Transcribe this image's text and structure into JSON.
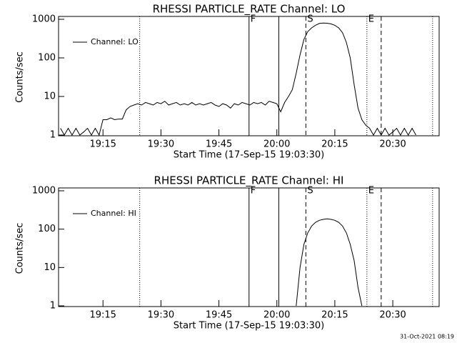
{
  "chart_data": [
    {
      "type": "line",
      "title": "RHESSI PARTICLE_RATE Channel: LO",
      "xlabel": "Start Time (17-Sep-15 19:03:30)",
      "ylabel": "Counts/sec",
      "log_y": true,
      "legend": "upper left",
      "color": "#000000",
      "xlim": [
        1143.5,
        1242
      ],
      "ylim": [
        1,
        1000
      ],
      "xticks": [
        {
          "value": 1155,
          "label": "19:15"
        },
        {
          "value": 1170,
          "label": "19:30"
        },
        {
          "value": 1185,
          "label": "19:45"
        },
        {
          "value": 1200,
          "label": "20:00"
        },
        {
          "value": 1215,
          "label": "20:15"
        },
        {
          "value": 1230,
          "label": "20:30"
        }
      ],
      "yticks": [
        1,
        10,
        100,
        1000
      ],
      "markers": [
        {
          "x": 1164.5,
          "style": "dotted"
        },
        {
          "x": 1192.8,
          "style": "solid",
          "label": "F"
        },
        {
          "x": 1200.5,
          "style": "solid"
        },
        {
          "x": 1207.5,
          "style": "dashed",
          "label": "S"
        },
        {
          "x": 1223.3,
          "style": "dotted",
          "label": "E"
        },
        {
          "x": 1227,
          "style": "dashed"
        },
        {
          "x": 1240.3,
          "style": "dotted"
        }
      ],
      "series": [
        {
          "name": "Channel: LO",
          "x": [
            1144,
            1145,
            1146,
            1147,
            1148,
            1149,
            1150,
            1151,
            1152,
            1153,
            1154,
            1155,
            1156,
            1157,
            1158,
            1159,
            1160,
            1161,
            1162,
            1163,
            1164,
            1165,
            1166,
            1167,
            1168,
            1169,
            1170,
            1171,
            1172,
            1173,
            1174,
            1175,
            1176,
            1177,
            1178,
            1179,
            1180,
            1181,
            1182,
            1183,
            1184,
            1185,
            1186,
            1187,
            1188,
            1189,
            1190,
            1191,
            1192,
            1193,
            1194,
            1195,
            1196,
            1197,
            1198,
            1199,
            1200,
            1201,
            1202,
            1203,
            1204,
            1205,
            1206,
            1207,
            1208,
            1209,
            1210,
            1211,
            1212,
            1213,
            1214,
            1215,
            1216,
            1217,
            1218,
            1219,
            1220,
            1221,
            1222,
            1223,
            1224,
            1225,
            1226,
            1227,
            1228,
            1229,
            1230,
            1231,
            1232,
            1233,
            1234,
            1235,
            1236
          ],
          "values": [
            1.5,
            1,
            1.5,
            1,
            1.5,
            1,
            1.2,
            1.5,
            1,
            1.5,
            1,
            2.5,
            2.5,
            2.8,
            2.5,
            2.6,
            2.6,
            4.5,
            5.5,
            6,
            6.5,
            6,
            7,
            6.5,
            6,
            7,
            6.5,
            7.5,
            6,
            6.5,
            7,
            6,
            6.5,
            6,
            7,
            6,
            6.5,
            6,
            6.5,
            7,
            6,
            5.5,
            6.5,
            6,
            5,
            6.5,
            6,
            7,
            6.5,
            6,
            7,
            6.5,
            7,
            6,
            7.5,
            7,
            6.5,
            4,
            7,
            10,
            15,
            40,
            120,
            300,
            480,
            600,
            700,
            780,
            800,
            790,
            760,
            700,
            600,
            450,
            250,
            100,
            20,
            5,
            2.5,
            1.8,
            1.5,
            1,
            1.5,
            1,
            1.5,
            1,
            1.2,
            1.5,
            1,
            1.5,
            1,
            1.5,
            1
          ]
        }
      ]
    },
    {
      "type": "line",
      "title": "RHESSI PARTICLE_RATE Channel: HI",
      "xlabel": "Start Time (17-Sep-15 19:03:30)",
      "ylabel": "Counts/sec",
      "log_y": true,
      "legend": "upper left",
      "color": "#000000",
      "xlim": [
        1143.5,
        1242
      ],
      "ylim": [
        1,
        1000
      ],
      "xticks": [
        {
          "value": 1155,
          "label": "19:15"
        },
        {
          "value": 1170,
          "label": "19:30"
        },
        {
          "value": 1185,
          "label": "19:45"
        },
        {
          "value": 1200,
          "label": "20:00"
        },
        {
          "value": 1215,
          "label": "20:15"
        },
        {
          "value": 1230,
          "label": "20:30"
        }
      ],
      "yticks": [
        1,
        10,
        100,
        1000
      ],
      "markers": [
        {
          "x": 1164.5,
          "style": "dotted"
        },
        {
          "x": 1192.8,
          "style": "solid",
          "label": "F"
        },
        {
          "x": 1200.5,
          "style": "solid"
        },
        {
          "x": 1207.5,
          "style": "dashed",
          "label": "S"
        },
        {
          "x": 1223.3,
          "style": "dotted",
          "label": "E"
        },
        {
          "x": 1227,
          "style": "dashed"
        },
        {
          "x": 1240.3,
          "style": "dotted"
        }
      ],
      "series": [
        {
          "name": "Channel: HI",
          "x": [
            1205,
            1206,
            1207,
            1208,
            1209,
            1210,
            1211,
            1212,
            1213,
            1214,
            1215,
            1216,
            1217,
            1218,
            1219,
            1220,
            1221,
            1222
          ],
          "values": [
            1,
            10,
            40,
            80,
            120,
            150,
            170,
            180,
            185,
            180,
            170,
            150,
            120,
            80,
            40,
            15,
            3,
            1
          ]
        }
      ]
    }
  ],
  "footer": "31-Oct-2021 08:19"
}
